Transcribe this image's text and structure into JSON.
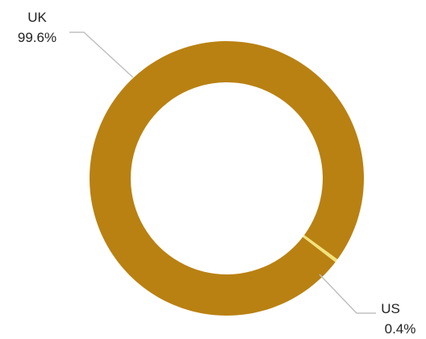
{
  "chart_data": {
    "type": "pie",
    "variant": "donut",
    "categories": [
      "UK",
      "US"
    ],
    "values": [
      99.6,
      0.4
    ],
    "value_labels": [
      "99.6%",
      "0.4%"
    ],
    "colors": [
      "#B98112",
      "#F2E27A"
    ],
    "title": "",
    "legend": "none"
  }
}
